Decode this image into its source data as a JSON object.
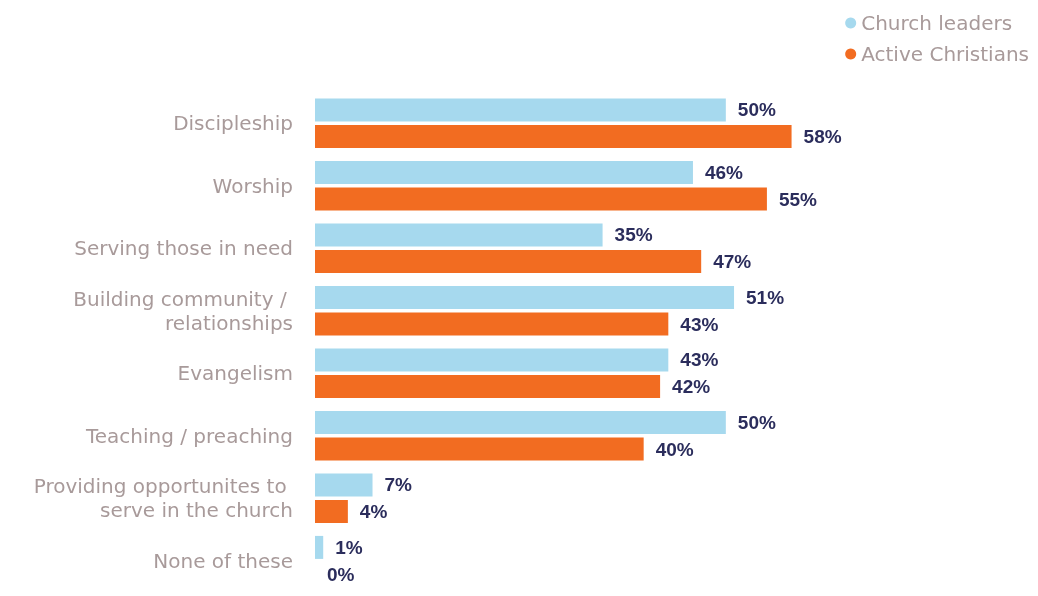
{
  "chart_data": {
    "type": "bar",
    "orientation": "horizontal",
    "legend": "top right",
    "categories": [
      "Discipleship",
      "Worship",
      "Serving those in need",
      "Building community / relationships",
      "Evangelism",
      "Teaching / preaching",
      "Providing opportunites to serve in the church",
      "None of these"
    ],
    "series": [
      {
        "name": "Church leaders",
        "color": "#a6d9ee",
        "values": [
          50,
          46,
          35,
          51,
          43,
          50,
          7,
          1
        ],
        "value_labels": [
          "50%",
          "46%",
          "35%",
          "51%",
          "43%",
          "50%",
          "7%",
          "1%"
        ]
      },
      {
        "name": "Active Christians",
        "color": "#f26c21",
        "values": [
          58,
          55,
          47,
          43,
          42,
          40,
          4,
          0
        ],
        "value_labels": [
          "58%",
          "55%",
          "47%",
          "43%",
          "42%",
          "40%",
          "4%",
          "0%"
        ]
      }
    ]
  }
}
